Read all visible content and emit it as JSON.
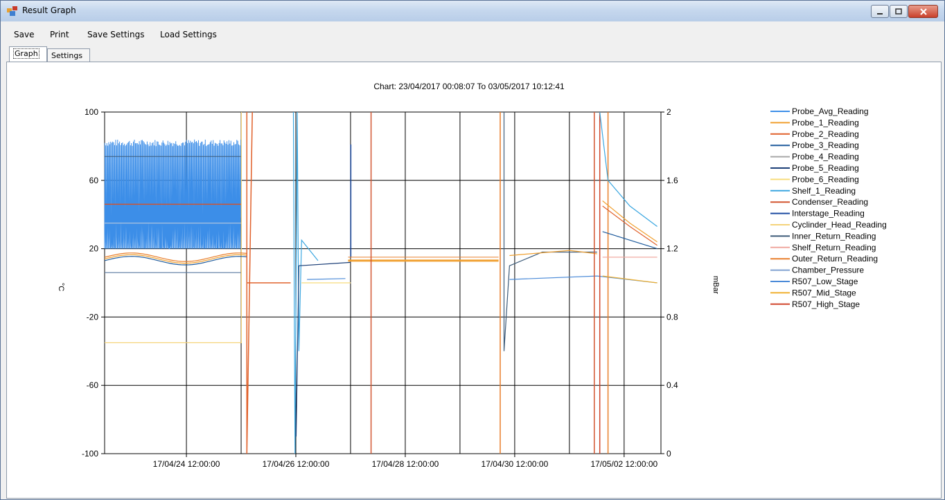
{
  "window": {
    "title": "Result Graph"
  },
  "menu": [
    "Save",
    "Print",
    "Save Settings",
    "Load Settings"
  ],
  "tabs": [
    "Graph",
    "Settings"
  ],
  "chart_data": {
    "type": "line",
    "title": "Chart: 23/04/2017 00:08:07 To 03/05/2017 10:12:41",
    "ylabel": "°C",
    "y2label": "mBar",
    "ylim": [
      -100,
      100
    ],
    "y2lim": [
      0,
      2
    ],
    "yticks": [
      "100",
      "60",
      "20",
      "-20",
      "-60",
      "-100"
    ],
    "y2ticks": [
      "2",
      "1.6",
      "1.2",
      "0.8",
      "0.4",
      "0"
    ],
    "xticks": [
      "17/04/24 12:00:00",
      "17/04/26 12:00:00",
      "17/04/28 12:00:00",
      "17/04/30 12:00:00",
      "17/05/02 12:00:00"
    ],
    "xlim_days": "23/04/2017 00:08:07 – 03/05/2017 10:12:41",
    "grid": true,
    "legend_position": "right",
    "series": [
      {
        "name": "Probe_Avg_Reading",
        "color": "#3c8ee8"
      },
      {
        "name": "Probe_1_Reading",
        "color": "#f0a030"
      },
      {
        "name": "Probe_2_Reading",
        "color": "#e0602a"
      },
      {
        "name": "Probe_3_Reading",
        "color": "#1d5a9c"
      },
      {
        "name": "Probe_4_Reading",
        "color": "#a6a6a6"
      },
      {
        "name": "Probe_5_Reading",
        "color": "#1b3e77"
      },
      {
        "name": "Probe_6_Reading",
        "color": "#f7dc7a"
      },
      {
        "name": "Shelf_1_Reading",
        "color": "#3aa6e0"
      },
      {
        "name": "Condenser_Reading",
        "color": "#d2542e"
      },
      {
        "name": "Interstage_Reading",
        "color": "#1b4aa0"
      },
      {
        "name": "Cyclinder_Head_Reading",
        "color": "#f5d37a"
      },
      {
        "name": "Inner_Return_Reading",
        "color": "#3c5a78"
      },
      {
        "name": "Shelf_Return_Reading",
        "color": "#f0a8a0"
      },
      {
        "name": "Outer_Return_Reading",
        "color": "#e87d2a"
      },
      {
        "name": "Chamber_Pressure",
        "color": "#7fa0d0"
      },
      {
        "name": "R507_Low_Stage",
        "color": "#4a8ad8"
      },
      {
        "name": "R507_Mid_Stage",
        "color": "#f0b030"
      },
      {
        "name": "R507_High_Stage",
        "color": "#d0442a"
      }
    ]
  }
}
